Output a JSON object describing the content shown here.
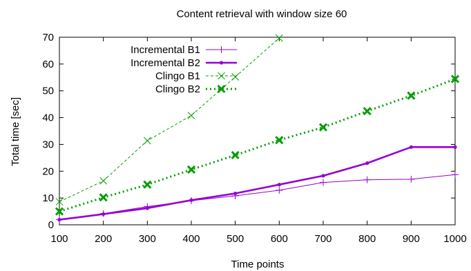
{
  "chart_data": {
    "type": "line",
    "title": "Content retrieval with window size 60",
    "xlabel": "Time points",
    "ylabel": "Total time [sec]",
    "xlim": [
      100,
      1000
    ],
    "ylim": [
      0,
      70
    ],
    "xticks": [
      100,
      200,
      300,
      400,
      500,
      600,
      700,
      800,
      900,
      1000
    ],
    "yticks": [
      0,
      10,
      20,
      30,
      40,
      50,
      60,
      70
    ],
    "grid": false,
    "legend_position": "top-left",
    "series": [
      {
        "name": "Incremental B1",
        "color": "#9400d3",
        "style": "thin solid, plus markers",
        "x": [
          100,
          200,
          300,
          400,
          500,
          600,
          700,
          800,
          900,
          1000
        ],
        "y": [
          2.0,
          4.2,
          6.8,
          9.0,
          10.8,
          12.9,
          15.8,
          16.8,
          17.0,
          18.7
        ]
      },
      {
        "name": "Incremental B2",
        "color": "#9400d3",
        "style": "thick solid, dot markers",
        "x": [
          100,
          200,
          300,
          400,
          500,
          600,
          700,
          800,
          900,
          1000
        ],
        "y": [
          1.9,
          4.0,
          6.2,
          9.2,
          11.7,
          15.0,
          18.3,
          23.0,
          29.0,
          29.0
        ]
      },
      {
        "name": "Clingo B1",
        "color": "#009e00",
        "style": "thin dashed, x markers",
        "x": [
          100,
          200,
          300,
          400,
          500,
          600
        ],
        "y": [
          8.6,
          16.4,
          31.4,
          40.8,
          55.2,
          69.7
        ]
      },
      {
        "name": "Clingo B2",
        "color": "#009e00",
        "style": "thick dotted, bold x markers",
        "x": [
          100,
          200,
          300,
          400,
          500,
          600,
          700,
          800,
          900,
          1000
        ],
        "y": [
          5.0,
          10.2,
          15.0,
          20.6,
          26.0,
          31.6,
          36.4,
          42.4,
          48.2,
          54.4
        ]
      }
    ]
  }
}
